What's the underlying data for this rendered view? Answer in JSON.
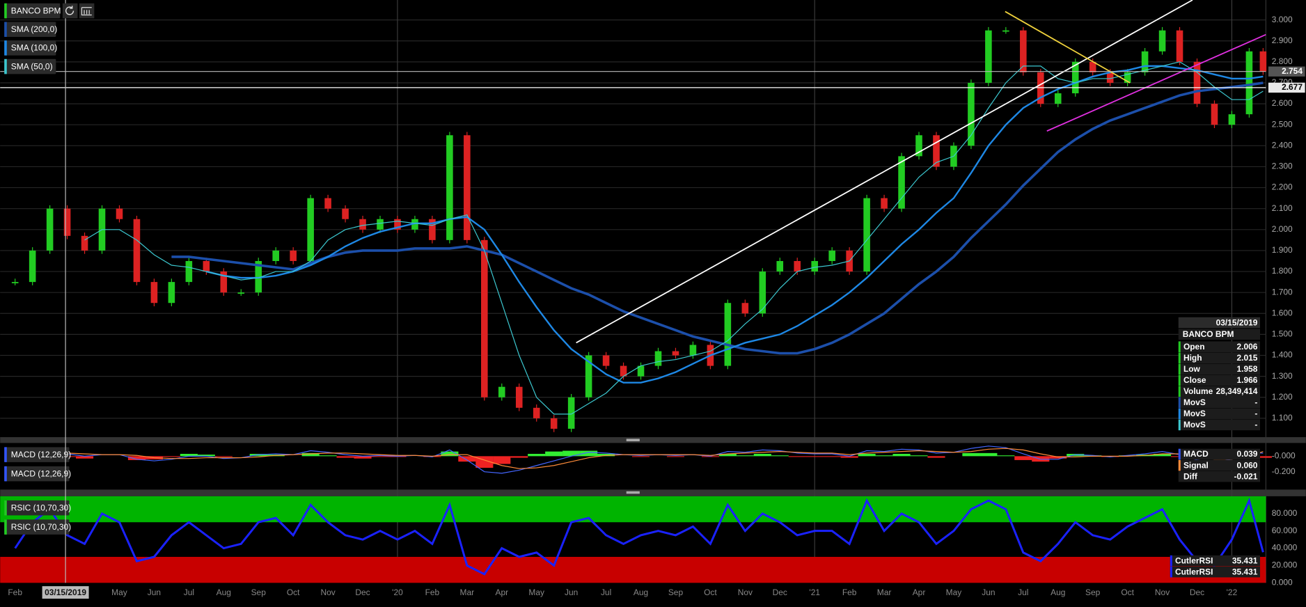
{
  "chart_data": {
    "type": "candlestick",
    "title": "BANCO BPM",
    "x": [
      0,
      0.5,
      1,
      1.5,
      2,
      2.5,
      3,
      3.5,
      4,
      4.5,
      5,
      5.5,
      6,
      6.5,
      7,
      7.5,
      8,
      8.5,
      9,
      9.5,
      10,
      10.5,
      11,
      11.5,
      12,
      12.5,
      13,
      13.5,
      14,
      14.5,
      15,
      15.5,
      16,
      16.5,
      17,
      17.5,
      18,
      18.5,
      19,
      19.5,
      20,
      20.5,
      21,
      21.5,
      22,
      22.5,
      23,
      23.5,
      24,
      24.5,
      25,
      25.5,
      26,
      26.5,
      27,
      27.5,
      28,
      28.5,
      29,
      29.5,
      30,
      30.5,
      31,
      31.5,
      32,
      32.5,
      33,
      33.5,
      34,
      34.5,
      35,
      35.5,
      35.9
    ],
    "xlim": [
      -0.43,
      35.98
    ],
    "xticks": [
      {
        "value": 0,
        "label": "Feb"
      },
      {
        "value": 3,
        "label": "May"
      },
      {
        "value": 4,
        "label": "Jun"
      },
      {
        "value": 5,
        "label": "Jul"
      },
      {
        "value": 6,
        "label": "Aug"
      },
      {
        "value": 7,
        "label": "Sep"
      },
      {
        "value": 8,
        "label": "Oct"
      },
      {
        "value": 9,
        "label": "Nov"
      },
      {
        "value": 10,
        "label": "Dec"
      },
      {
        "value": 11,
        "label": "'20"
      },
      {
        "value": 12,
        "label": "Feb"
      },
      {
        "value": 13,
        "label": "Mar"
      },
      {
        "value": 14,
        "label": "Apr"
      },
      {
        "value": 15,
        "label": "May"
      },
      {
        "value": 16,
        "label": "Jun"
      },
      {
        "value": 17,
        "label": "Jul"
      },
      {
        "value": 18,
        "label": "Aug"
      },
      {
        "value": 19,
        "label": "Sep"
      },
      {
        "value": 20,
        "label": "Oct"
      },
      {
        "value": 21,
        "label": "Nov"
      },
      {
        "value": 22,
        "label": "Dec"
      },
      {
        "value": 23,
        "label": "'21"
      },
      {
        "value": 24,
        "label": "Feb"
      },
      {
        "value": 25,
        "label": "Mar"
      },
      {
        "value": 26,
        "label": "Apr"
      },
      {
        "value": 27,
        "label": "May"
      },
      {
        "value": 28,
        "label": "Jun"
      },
      {
        "value": 29,
        "label": "Jul"
      },
      {
        "value": 30,
        "label": "Aug"
      },
      {
        "value": 31,
        "label": "Sep"
      },
      {
        "value": 32,
        "label": "Oct"
      },
      {
        "value": 33,
        "label": "Nov"
      },
      {
        "value": 34,
        "label": "Dec"
      },
      {
        "value": 35,
        "label": "'22"
      }
    ],
    "xgrid": [
      11,
      23,
      35
    ],
    "ylim": [
      1.01,
      3.095
    ],
    "yticks": [
      {
        "value": 1.1,
        "label": "1.100"
      },
      {
        "value": 1.2,
        "label": "1.200"
      },
      {
        "value": 1.3,
        "label": "1.300"
      },
      {
        "value": 1.4,
        "label": "1.400"
      },
      {
        "value": 1.5,
        "label": "1.500"
      },
      {
        "value": 1.6,
        "label": "1.600"
      },
      {
        "value": 1.7,
        "label": "1.700"
      },
      {
        "value": 1.8,
        "label": "1.800"
      },
      {
        "value": 1.9,
        "label": "1.900"
      },
      {
        "value": 2.0,
        "label": "2.000"
      },
      {
        "value": 2.1,
        "label": "2.100"
      },
      {
        "value": 2.2,
        "label": "2.200"
      },
      {
        "value": 2.3,
        "label": "2.300"
      },
      {
        "value": 2.4,
        "label": "2.400"
      },
      {
        "value": 2.5,
        "label": "2.500"
      },
      {
        "value": 2.6,
        "label": "2.600"
      },
      {
        "value": 2.7,
        "label": "2.700"
      },
      {
        "value": 2.8,
        "label": "2.800"
      },
      {
        "value": 2.9,
        "label": "2.900"
      },
      {
        "value": 3.0,
        "label": "3.000"
      }
    ],
    "grid": true,
    "series": [
      {
        "name": "BANCO BPM",
        "color": "#22cc22",
        "color_down": "#dd2222",
        "values": [
          1.75,
          1.9,
          2.1,
          1.97,
          1.9,
          2.1,
          2.05,
          1.75,
          1.65,
          1.75,
          1.85,
          1.8,
          1.7,
          1.7,
          1.85,
          1.9,
          1.85,
          2.15,
          2.1,
          2.05,
          2.0,
          2.05,
          2.0,
          2.05,
          1.95,
          2.45,
          1.95,
          1.2,
          1.25,
          1.15,
          1.1,
          1.05,
          1.2,
          1.4,
          1.35,
          1.3,
          1.35,
          1.42,
          1.4,
          1.45,
          1.35,
          1.65,
          1.6,
          1.8,
          1.85,
          1.8,
          1.85,
          1.9,
          1.8,
          2.15,
          2.1,
          2.35,
          2.45,
          2.3,
          2.4,
          2.7,
          2.95,
          2.95,
          2.75,
          2.6,
          2.65,
          2.8,
          2.75,
          2.7,
          2.75,
          2.85,
          2.95,
          2.8,
          2.6,
          2.5,
          2.55,
          2.85,
          2.754
        ]
      },
      {
        "name": "SMA (200,0)",
        "color": "#1c4faa",
        "width": 3,
        "values": [
          null,
          null,
          null,
          null,
          null,
          null,
          null,
          null,
          null,
          1.87,
          1.87,
          1.86,
          1.85,
          1.84,
          1.83,
          1.82,
          1.81,
          1.84,
          1.87,
          1.89,
          1.9,
          1.9,
          1.9,
          1.91,
          1.91,
          1.91,
          1.92,
          1.9,
          1.88,
          1.84,
          1.8,
          1.76,
          1.72,
          1.69,
          1.65,
          1.61,
          1.58,
          1.55,
          1.52,
          1.49,
          1.47,
          1.45,
          1.43,
          1.42,
          1.41,
          1.41,
          1.43,
          1.46,
          1.5,
          1.55,
          1.6,
          1.67,
          1.74,
          1.8,
          1.87,
          1.96,
          2.04,
          2.12,
          2.21,
          2.29,
          2.37,
          2.43,
          2.48,
          2.52,
          2.55,
          2.58,
          2.61,
          2.64,
          2.66,
          2.67,
          2.68,
          2.69,
          2.7
        ]
      },
      {
        "name": "SMA (100,0)",
        "color": "#1e88e5",
        "width": 2,
        "values": [
          null,
          null,
          null,
          null,
          null,
          null,
          null,
          null,
          null,
          null,
          null,
          1.8,
          1.78,
          1.77,
          1.77,
          1.78,
          1.8,
          1.83,
          1.87,
          1.92,
          1.96,
          1.99,
          2.01,
          2.03,
          2.03,
          2.05,
          2.06,
          2.0,
          1.88,
          1.75,
          1.63,
          1.52,
          1.43,
          1.37,
          1.31,
          1.27,
          1.27,
          1.29,
          1.32,
          1.36,
          1.4,
          1.43,
          1.46,
          1.48,
          1.5,
          1.54,
          1.59,
          1.64,
          1.7,
          1.77,
          1.85,
          1.93,
          2.0,
          2.08,
          2.15,
          2.27,
          2.4,
          2.5,
          2.58,
          2.63,
          2.67,
          2.7,
          2.73,
          2.75,
          2.76,
          2.78,
          2.78,
          2.77,
          2.76,
          2.74,
          2.72,
          2.72,
          2.73
        ]
      },
      {
        "name": "SMA (50,0)",
        "color": "#3cc8d0",
        "width": 1,
        "values": [
          null,
          null,
          null,
          null,
          1.95,
          2.0,
          2.0,
          1.95,
          1.88,
          1.83,
          1.82,
          1.8,
          1.78,
          1.76,
          1.77,
          1.8,
          1.8,
          1.85,
          1.95,
          2.0,
          2.02,
          2.03,
          2.04,
          2.03,
          2.02,
          2.05,
          2.07,
          1.9,
          1.65,
          1.4,
          1.2,
          1.12,
          1.12,
          1.17,
          1.22,
          1.3,
          1.35,
          1.37,
          1.38,
          1.4,
          1.42,
          1.47,
          1.55,
          1.62,
          1.72,
          1.8,
          1.82,
          1.83,
          1.85,
          1.95,
          2.05,
          2.15,
          2.25,
          2.32,
          2.35,
          2.45,
          2.58,
          2.7,
          2.78,
          2.78,
          2.72,
          2.7,
          2.72,
          2.72,
          2.74,
          2.76,
          2.78,
          2.8,
          2.75,
          2.68,
          2.62,
          2.62,
          2.66
        ]
      }
    ],
    "price_lines": [
      {
        "value": 2.754,
        "color": "#bbbbbb"
      },
      {
        "value": 2.677,
        "color": "#ffffff"
      }
    ],
    "trendlines": [
      {
        "color": "#ffffff",
        "x": [
          16.14,
          33.87
        ],
        "y": [
          1.46,
          3.095
        ]
      },
      {
        "color": "#f0d23c",
        "x": [
          28.48,
          32.07
        ],
        "y": [
          3.04,
          2.7
        ]
      },
      {
        "color": "#e030e0",
        "x": [
          29.68,
          35.98
        ],
        "y": [
          2.47,
          2.93
        ]
      }
    ],
    "crosshair": {
      "x": 1.45,
      "label": "03/15/2019"
    },
    "info": {
      "date": "03/15/2019",
      "name": "BANCO BPM",
      "rows": [
        {
          "label": "Open",
          "value": "2.006",
          "color": "#22cc22"
        },
        {
          "label": "High",
          "value": "2.015",
          "color": "#22cc22"
        },
        {
          "label": "Low",
          "value": "1.958",
          "color": "#22cc22"
        },
        {
          "label": "Close",
          "value": "1.966",
          "color": "#22cc22"
        },
        {
          "label": "Volume",
          "value": "28,349,414",
          "color": "#22cc22"
        },
        {
          "label": "MovS",
          "value": "-",
          "color": "#1c4faa"
        },
        {
          "label": "MovS",
          "value": "-",
          "color": "#1e88e5"
        },
        {
          "label": "MovS",
          "value": "-",
          "color": "#3cc8d0"
        }
      ]
    },
    "indicators": [
      {
        "type": "macd",
        "labels": [
          "MACD (12,26,9)",
          "MACD (12,26,9)"
        ],
        "label_color": "#3355ff",
        "ylim": [
          -0.43,
          0.17
        ],
        "yticks": [
          {
            "value": 0,
            "label": "-0.000"
          },
          {
            "value": -0.2,
            "label": "-0.200"
          }
        ],
        "macd": {
          "color": "#4466ff",
          "values": [
            0.02,
            0.04,
            0.06,
            0.03,
            0.0,
            0.02,
            0.02,
            -0.04,
            -0.06,
            -0.04,
            0.0,
            0.0,
            -0.03,
            -0.02,
            0.02,
            0.03,
            0.02,
            0.07,
            0.05,
            0.02,
            0.0,
            0.01,
            0.0,
            0.01,
            -0.01,
            0.08,
            -0.05,
            -0.2,
            -0.22,
            -0.18,
            -0.12,
            -0.06,
            0.0,
            0.05,
            0.04,
            0.02,
            0.01,
            0.02,
            0.01,
            0.02,
            0.0,
            0.06,
            0.05,
            0.08,
            0.07,
            0.04,
            0.03,
            0.03,
            0.0,
            0.07,
            0.06,
            0.09,
            0.08,
            0.04,
            0.05,
            0.1,
            0.13,
            0.11,
            0.03,
            -0.04,
            -0.04,
            0.02,
            0.01,
            -0.01,
            0.01,
            0.03,
            0.06,
            0.02,
            -0.05,
            -0.08,
            -0.04,
            0.05,
            0.039
          ]
        },
        "signal": {
          "color": "#ff8c3a",
          "values": [
            0.01,
            0.02,
            0.03,
            0.04,
            0.03,
            0.02,
            0.02,
            0.01,
            -0.02,
            -0.03,
            -0.03,
            -0.02,
            -0.02,
            -0.02,
            -0.01,
            0.01,
            0.02,
            0.03,
            0.04,
            0.04,
            0.03,
            0.02,
            0.01,
            0.01,
            0.0,
            0.02,
            0.02,
            -0.05,
            -0.12,
            -0.16,
            -0.15,
            -0.12,
            -0.07,
            -0.02,
            0.01,
            0.02,
            0.02,
            0.02,
            0.02,
            0.02,
            0.01,
            0.03,
            0.04,
            0.05,
            0.06,
            0.05,
            0.04,
            0.04,
            0.02,
            0.04,
            0.05,
            0.06,
            0.07,
            0.06,
            0.05,
            0.06,
            0.09,
            0.1,
            0.08,
            0.03,
            -0.01,
            -0.01,
            0.0,
            0.0,
            0.0,
            0.01,
            0.03,
            0.03,
            -0.01,
            -0.04,
            -0.04,
            0.0,
            0.06
          ]
        },
        "diff": {
          "color": "#33ee33",
          "color_down": "#ee2222",
          "values": [
            0.01,
            0.02,
            0.03,
            -0.01,
            -0.03,
            0.0,
            0.0,
            -0.05,
            -0.04,
            -0.01,
            0.03,
            0.02,
            -0.01,
            0.0,
            0.03,
            0.02,
            0.0,
            0.04,
            0.01,
            -0.02,
            -0.03,
            -0.01,
            -0.01,
            0.0,
            -0.01,
            0.06,
            -0.07,
            -0.15,
            -0.1,
            -0.02,
            0.03,
            0.06,
            0.07,
            0.07,
            0.03,
            0.0,
            -0.01,
            0.0,
            -0.01,
            0.0,
            -0.01,
            0.03,
            0.01,
            0.03,
            0.01,
            -0.01,
            -0.01,
            -0.01,
            -0.02,
            0.03,
            0.01,
            0.03,
            0.01,
            -0.02,
            0.0,
            0.04,
            0.04,
            0.01,
            -0.05,
            -0.07,
            -0.03,
            0.03,
            0.01,
            -0.01,
            0.01,
            0.02,
            0.03,
            -0.01,
            -0.04,
            -0.04,
            0.0,
            0.05,
            -0.021
          ]
        },
        "info": [
          {
            "label": "MACD",
            "value": "0.039",
            "color": "#3355ff"
          },
          {
            "label": "Signal",
            "value": "0.060",
            "color": "#ff8c3a"
          },
          {
            "label": "Diff",
            "value": "-0.021"
          }
        ]
      },
      {
        "type": "rsi",
        "labels": [
          "RSIC (10,70,30)",
          "RSIC (10,70,30)"
        ],
        "label_color": "#22cc22",
        "ylim": [
          0,
          100
        ],
        "yticks": [
          {
            "value": 0,
            "label": "0.000"
          },
          {
            "value": 20,
            "label": "20.000"
          },
          {
            "value": 40,
            "label": "40.000"
          },
          {
            "value": 60,
            "label": "60.000"
          },
          {
            "value": 80,
            "label": "80.000"
          }
        ],
        "bands": [
          {
            "from": 70,
            "to": 100,
            "color": "#00b400"
          },
          {
            "from": 0,
            "to": 30,
            "color": "#c80000"
          }
        ],
        "rsi": {
          "color": "#1a22ff",
          "values": [
            40,
            70,
            85,
            55,
            45,
            80,
            70,
            25,
            30,
            55,
            70,
            55,
            40,
            45,
            70,
            75,
            55,
            90,
            70,
            55,
            50,
            60,
            50,
            60,
            45,
            90,
            20,
            10,
            40,
            30,
            35,
            20,
            70,
            75,
            55,
            45,
            55,
            60,
            55,
            65,
            45,
            90,
            60,
            80,
            70,
            55,
            60,
            60,
            45,
            95,
            60,
            80,
            70,
            45,
            60,
            85,
            95,
            85,
            35,
            25,
            45,
            70,
            55,
            50,
            65,
            75,
            85,
            50,
            25,
            20,
            50,
            95,
            35.431
          ]
        },
        "info": [
          {
            "label": "CutlerRSI",
            "value": "35.431",
            "color": "#1a22ff"
          },
          {
            "label": "CutlerRSI",
            "value": "35.431",
            "color": "#1a22ff"
          }
        ]
      }
    ]
  }
}
